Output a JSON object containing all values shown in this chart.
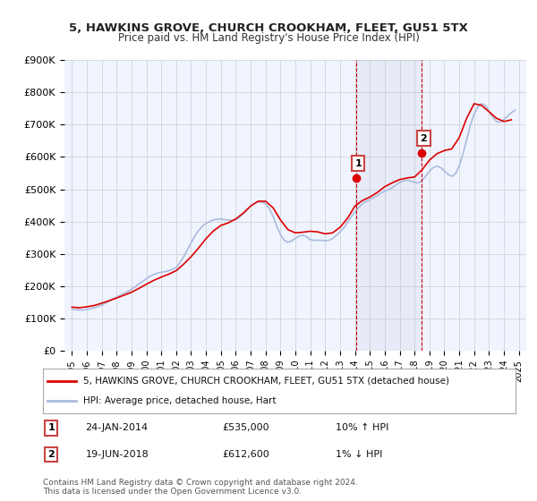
{
  "title": "5, HAWKINS GROVE, CHURCH CROOKHAM, FLEET, GU51 5TX",
  "subtitle": "Price paid vs. HM Land Registry's House Price Index (HPI)",
  "ylabel": "",
  "xlabel": "",
  "background_color": "#ffffff",
  "plot_background": "#f0f4ff",
  "grid_color": "#cccccc",
  "hpi_line_color": "#aabbdd",
  "price_line_color": "#dd0000",
  "marker1_date_label": "1",
  "marker2_date_label": "2",
  "marker1_x": 2014.07,
  "marker2_x": 2018.47,
  "marker1_y": 535000,
  "marker2_y": 612600,
  "point1_info": "24-JAN-2014    £535,000    10% ↑ HPI",
  "point2_info": "19-JUN-2018    £612,600      1% ↓ HPI",
  "legend_line1": "5, HAWKINS GROVE, CHURCH CROOKHAM, FLEET, GU51 5TX (detached house)",
  "legend_line2": "HPI: Average price, detached house, Hart",
  "footer": "Contains HM Land Registry data © Crown copyright and database right 2024.\nThis data is licensed under the Open Government Licence v3.0.",
  "ylim": [
    0,
    900000
  ],
  "xlim": [
    1994.5,
    2025.5
  ],
  "yticks": [
    0,
    100000,
    200000,
    300000,
    400000,
    500000,
    600000,
    700000,
    800000,
    900000
  ],
  "ytick_labels": [
    "£0",
    "£100K",
    "£200K",
    "£300K",
    "£400K",
    "£500K",
    "£600K",
    "£700K",
    "£800K",
    "£900K"
  ],
  "xticks": [
    1995,
    1996,
    1997,
    1998,
    1999,
    2000,
    2001,
    2002,
    2003,
    2004,
    2005,
    2006,
    2007,
    2008,
    2009,
    2010,
    2011,
    2012,
    2013,
    2014,
    2015,
    2016,
    2017,
    2018,
    2019,
    2020,
    2021,
    2022,
    2023,
    2024,
    2025
  ],
  "hpi_years": [
    1995.0,
    1995.25,
    1995.5,
    1995.75,
    1996.0,
    1996.25,
    1996.5,
    1996.75,
    1997.0,
    1997.25,
    1997.5,
    1997.75,
    1998.0,
    1998.25,
    1998.5,
    1998.75,
    1999.0,
    1999.25,
    1999.5,
    1999.75,
    2000.0,
    2000.25,
    2000.5,
    2000.75,
    2001.0,
    2001.25,
    2001.5,
    2001.75,
    2002.0,
    2002.25,
    2002.5,
    2002.75,
    2003.0,
    2003.25,
    2003.5,
    2003.75,
    2004.0,
    2004.25,
    2004.5,
    2004.75,
    2005.0,
    2005.25,
    2005.5,
    2005.75,
    2006.0,
    2006.25,
    2006.5,
    2006.75,
    2007.0,
    2007.25,
    2007.5,
    2007.75,
    2008.0,
    2008.25,
    2008.5,
    2008.75,
    2009.0,
    2009.25,
    2009.5,
    2009.75,
    2010.0,
    2010.25,
    2010.5,
    2010.75,
    2011.0,
    2011.25,
    2011.5,
    2011.75,
    2012.0,
    2012.25,
    2012.5,
    2012.75,
    2013.0,
    2013.25,
    2013.5,
    2013.75,
    2014.0,
    2014.25,
    2014.5,
    2014.75,
    2015.0,
    2015.25,
    2015.5,
    2015.75,
    2016.0,
    2016.25,
    2016.5,
    2016.75,
    2017.0,
    2017.25,
    2017.5,
    2017.75,
    2018.0,
    2018.25,
    2018.5,
    2018.75,
    2019.0,
    2019.25,
    2019.5,
    2019.75,
    2020.0,
    2020.25,
    2020.5,
    2020.75,
    2021.0,
    2021.25,
    2021.5,
    2021.75,
    2022.0,
    2022.25,
    2022.5,
    2022.75,
    2023.0,
    2023.25,
    2023.5,
    2023.75,
    2024.0,
    2024.25,
    2024.5,
    2024.75
  ],
  "hpi_values": [
    129000,
    127000,
    126000,
    126000,
    128000,
    130000,
    133000,
    137000,
    141000,
    147000,
    153000,
    160000,
    166000,
    172000,
    178000,
    183000,
    190000,
    198000,
    207000,
    215000,
    223000,
    231000,
    236000,
    240000,
    243000,
    245000,
    248000,
    252000,
    258000,
    272000,
    291000,
    312000,
    334000,
    355000,
    372000,
    385000,
    394000,
    400000,
    405000,
    407000,
    408000,
    406000,
    404000,
    404000,
    406000,
    414000,
    424000,
    436000,
    448000,
    456000,
    461000,
    460000,
    455000,
    441000,
    417000,
    386000,
    360000,
    342000,
    336000,
    340000,
    348000,
    355000,
    358000,
    353000,
    344000,
    342000,
    342000,
    342000,
    340000,
    342000,
    347000,
    357000,
    368000,
    380000,
    397000,
    415000,
    430000,
    443000,
    455000,
    462000,
    468000,
    474000,
    480000,
    488000,
    494000,
    498000,
    505000,
    513000,
    521000,
    526000,
    528000,
    525000,
    521000,
    520000,
    527000,
    540000,
    556000,
    567000,
    572000,
    567000,
    557000,
    546000,
    540000,
    548000,
    572000,
    609000,
    654000,
    698000,
    733000,
    755000,
    765000,
    760000,
    742000,
    723000,
    710000,
    708000,
    716000,
    727000,
    737000,
    745000
  ],
  "price_years": [
    1995.0,
    1995.5,
    1996.0,
    1996.5,
    1997.0,
    1997.5,
    1998.0,
    1998.5,
    1999.0,
    1999.5,
    2000.0,
    2000.5,
    2001.0,
    2001.5,
    2002.0,
    2002.5,
    2003.0,
    2003.5,
    2004.0,
    2004.5,
    2005.0,
    2005.5,
    2006.0,
    2006.5,
    2007.0,
    2007.5,
    2008.0,
    2008.5,
    2009.0,
    2009.5,
    2010.0,
    2010.5,
    2011.0,
    2011.5,
    2012.0,
    2012.5,
    2013.0,
    2013.5,
    2014.0,
    2014.5,
    2015.0,
    2015.5,
    2016.0,
    2016.5,
    2017.0,
    2017.5,
    2018.0,
    2018.5,
    2019.0,
    2019.5,
    2020.0,
    2020.5,
    2021.0,
    2021.5,
    2022.0,
    2022.5,
    2023.0,
    2023.5,
    2024.0,
    2024.5
  ],
  "price_values": [
    135000,
    133000,
    136000,
    140000,
    147000,
    155000,
    163000,
    172000,
    181000,
    193000,
    206000,
    218000,
    228000,
    237000,
    248000,
    268000,
    291000,
    318000,
    347000,
    371000,
    388000,
    396000,
    408000,
    426000,
    448000,
    463000,
    463000,
    443000,
    405000,
    375000,
    365000,
    367000,
    370000,
    368000,
    362000,
    365000,
    382000,
    410000,
    448000,
    465000,
    476000,
    490000,
    508000,
    520000,
    530000,
    535000,
    538000,
    560000,
    590000,
    610000,
    620000,
    625000,
    660000,
    720000,
    765000,
    760000,
    740000,
    720000,
    710000,
    715000
  ],
  "shaded_region_x1": 2014.07,
  "shaded_region_x2": 2018.47
}
